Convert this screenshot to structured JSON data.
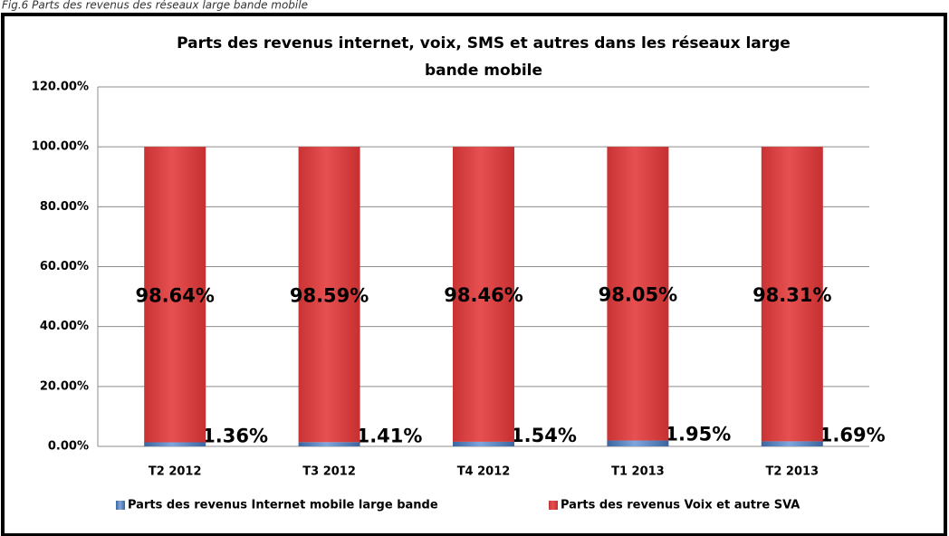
{
  "caption": "Fig.6 Parts des revenus des réseaux large bande mobile",
  "chart_data": {
    "type": "stacked_bar",
    "title": "Parts des revenus internet, voix, SMS et autres dans les réseaux large",
    "title_line2": "bande mobile",
    "categories": [
      "T2 2012",
      "T3 2012",
      "T4 2012",
      "T1 2013",
      "T2 2013"
    ],
    "series": [
      {
        "name": "Parts des revenus Internet mobile large bande",
        "color": "#4f81bd",
        "values": [
          1.36,
          1.41,
          1.54,
          1.95,
          1.69
        ],
        "value_labels": [
          "1.36%",
          "1.41%",
          "1.54%",
          "1.95%",
          "1.69%"
        ]
      },
      {
        "name": "Parts des revenus Voix et autre SVA",
        "color": "#d94040",
        "values": [
          98.64,
          98.59,
          98.46,
          98.05,
          98.31
        ],
        "value_labels": [
          "98.64%",
          "98.59%",
          "98.46%",
          "98.05%",
          "98.31%"
        ]
      }
    ],
    "ylim": [
      0,
      120
    ],
    "yticks": [
      {
        "value": 0,
        "label": "0.00%"
      },
      {
        "value": 20,
        "label": "20.00%"
      },
      {
        "value": 40,
        "label": "40.00%"
      },
      {
        "value": 60,
        "label": "60.00%"
      },
      {
        "value": 80,
        "label": "80.00%"
      },
      {
        "value": 100,
        "label": "100.00%"
      },
      {
        "value": 120,
        "label": "120.00%"
      }
    ],
    "grid": true,
    "legend": "bottom"
  }
}
